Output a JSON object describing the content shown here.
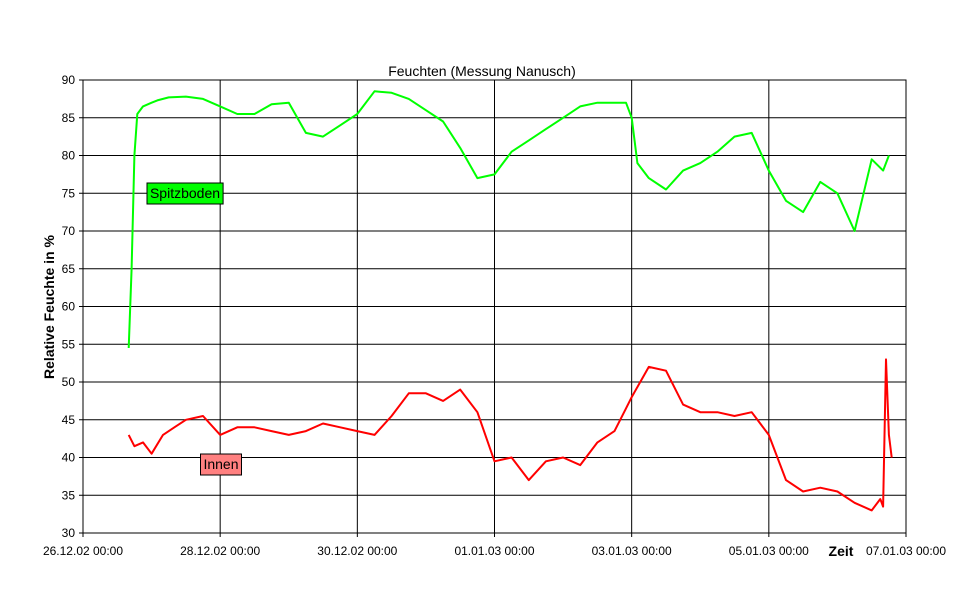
{
  "chart_data": {
    "type": "line",
    "title": "Feuchten (Messung Nanusch)",
    "xlabel": "Zeit",
    "ylabel": "Relative Feuchte in %",
    "ylim": [
      30,
      90
    ],
    "yticks": [
      30,
      35,
      40,
      45,
      50,
      55,
      60,
      65,
      70,
      75,
      80,
      85,
      90
    ],
    "xlim": [
      "26.12.02 00:00",
      "07.01.03 00:00"
    ],
    "xticks": [
      "26.12.02 00:00",
      "28.12.02 00:00",
      "30.12.02 00:00",
      "01.01.03 00:00",
      "03.01.03 00:00",
      "05.01.03 00:00",
      "07.01.03 00:00"
    ],
    "grid": true,
    "series": [
      {
        "name": "Spitzboden",
        "color": "#00ff00",
        "label_bg": "#00ff00",
        "x": [
          "26.12.02 16:00",
          "26.12.02 17:00",
          "26.12.02 18:00",
          "26.12.02 19:00",
          "26.12.02 21:00",
          "27.12.02 00:00",
          "27.12.02 02:00",
          "27.12.02 06:00",
          "27.12.02 12:00",
          "27.12.02 18:00",
          "28.12.02 00:00",
          "28.12.02 06:00",
          "28.12.02 12:00",
          "28.12.02 18:00",
          "29.12.02 00:00",
          "29.12.02 06:00",
          "29.12.02 12:00",
          "29.12.02 18:00",
          "30.12.02 00:00",
          "30.12.02 06:00",
          "30.12.02 12:00",
          "30.12.02 18:00",
          "31.12.02 00:00",
          "31.12.02 06:00",
          "31.12.02 12:00",
          "31.12.02 18:00",
          "01.01.03 00:00",
          "01.01.03 06:00",
          "01.01.03 12:00",
          "01.01.03 18:00",
          "02.01.03 00:00",
          "02.01.03 06:00",
          "02.01.03 12:00",
          "02.01.03 18:00",
          "02.01.03 22:00",
          "03.01.03 00:00",
          "03.01.03 02:00",
          "03.01.03 06:00",
          "03.01.03 12:00",
          "03.01.03 18:00",
          "04.01.03 00:00",
          "04.01.03 06:00",
          "04.01.03 12:00",
          "04.01.03 18:00",
          "05.01.03 00:00",
          "05.01.03 06:00",
          "05.01.03 12:00",
          "05.01.03 18:00",
          "06.01.03 00:00",
          "06.01.03 06:00",
          "06.01.03 12:00",
          "06.01.03 16:00",
          "06.01.03 18:00"
        ],
        "y": [
          54.5,
          65,
          80,
          85.5,
          86.5,
          87,
          87.3,
          87.7,
          87.8,
          87.5,
          86.5,
          85.5,
          85.5,
          86.8,
          87,
          83,
          82.5,
          84,
          85.5,
          88.5,
          88.3,
          87.5,
          86,
          84.5,
          81,
          77,
          77.5,
          80.5,
          82,
          83.5,
          85,
          86.5,
          87,
          87,
          87,
          85,
          79,
          77,
          75.5,
          78,
          79,
          80.5,
          82.5,
          83,
          78,
          74,
          72.5,
          76.5,
          75,
          70,
          79.5,
          78,
          80
        ]
      },
      {
        "name": "Innen",
        "color": "#ff0000",
        "label_bg": "#ff8080",
        "x": [
          "26.12.02 16:00",
          "26.12.02 18:00",
          "26.12.02 21:00",
          "27.12.02 00:00",
          "27.12.02 04:00",
          "27.12.02 08:00",
          "27.12.02 12:00",
          "27.12.02 18:00",
          "28.12.02 00:00",
          "28.12.02 06:00",
          "28.12.02 12:00",
          "28.12.02 18:00",
          "29.12.02 00:00",
          "29.12.02 06:00",
          "29.12.02 12:00",
          "29.12.02 18:00",
          "30.12.02 00:00",
          "30.12.02 06:00",
          "30.12.02 12:00",
          "30.12.02 18:00",
          "31.12.02 00:00",
          "31.12.02 06:00",
          "31.12.02 12:00",
          "31.12.02 18:00",
          "01.01.03 00:00",
          "01.01.03 06:00",
          "01.01.03 12:00",
          "01.01.03 18:00",
          "02.01.03 00:00",
          "02.01.03 06:00",
          "02.01.03 12:00",
          "02.01.03 18:00",
          "02.01.03 22:00",
          "03.01.03 00:00",
          "03.01.03 06:00",
          "03.01.03 12:00",
          "03.01.03 18:00",
          "04.01.03 00:00",
          "04.01.03 06:00",
          "04.01.03 12:00",
          "04.01.03 18:00",
          "05.01.03 00:00",
          "05.01.03 06:00",
          "05.01.03 12:00",
          "05.01.03 18:00",
          "06.01.03 00:00",
          "06.01.03 06:00",
          "06.01.03 12:00",
          "06.01.03 15:00",
          "06.01.03 16:00",
          "06.01.03 17:00",
          "06.01.03 18:00",
          "06.01.03 19:00"
        ],
        "y": [
          43,
          41.5,
          42,
          40.5,
          43,
          44,
          45,
          45.5,
          43,
          44,
          44,
          43.5,
          43,
          43.5,
          44.5,
          44,
          43.5,
          43,
          45.5,
          48.5,
          48.5,
          47.5,
          49,
          46,
          39.5,
          40,
          37,
          39.5,
          40,
          39,
          42,
          43.5,
          46.5,
          48,
          52,
          51.5,
          47,
          46,
          46,
          45.5,
          46,
          43,
          37,
          35.5,
          36,
          35.5,
          34,
          33,
          34.5,
          33.5,
          53,
          43,
          40
        ]
      }
    ]
  }
}
